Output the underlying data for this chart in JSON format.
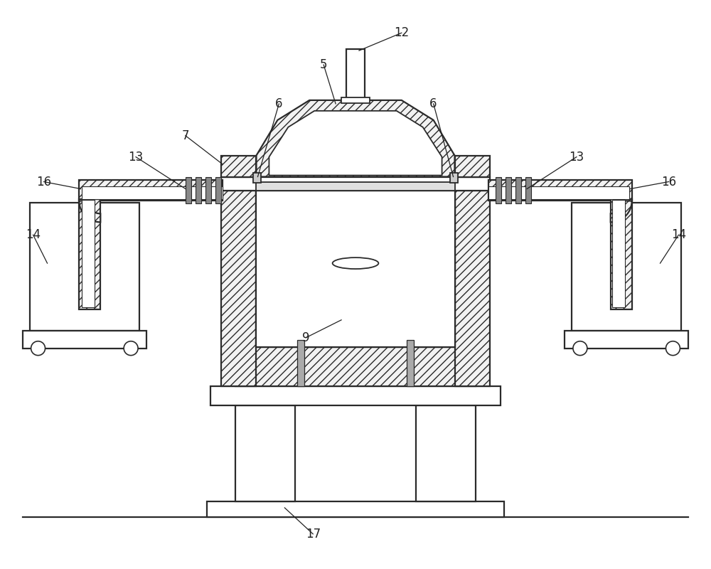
{
  "bg_color": "#ffffff",
  "line_color": "#2a2a2a",
  "label_color": "#222222",
  "hatch_pattern": "///",
  "label_fontsize": 12
}
